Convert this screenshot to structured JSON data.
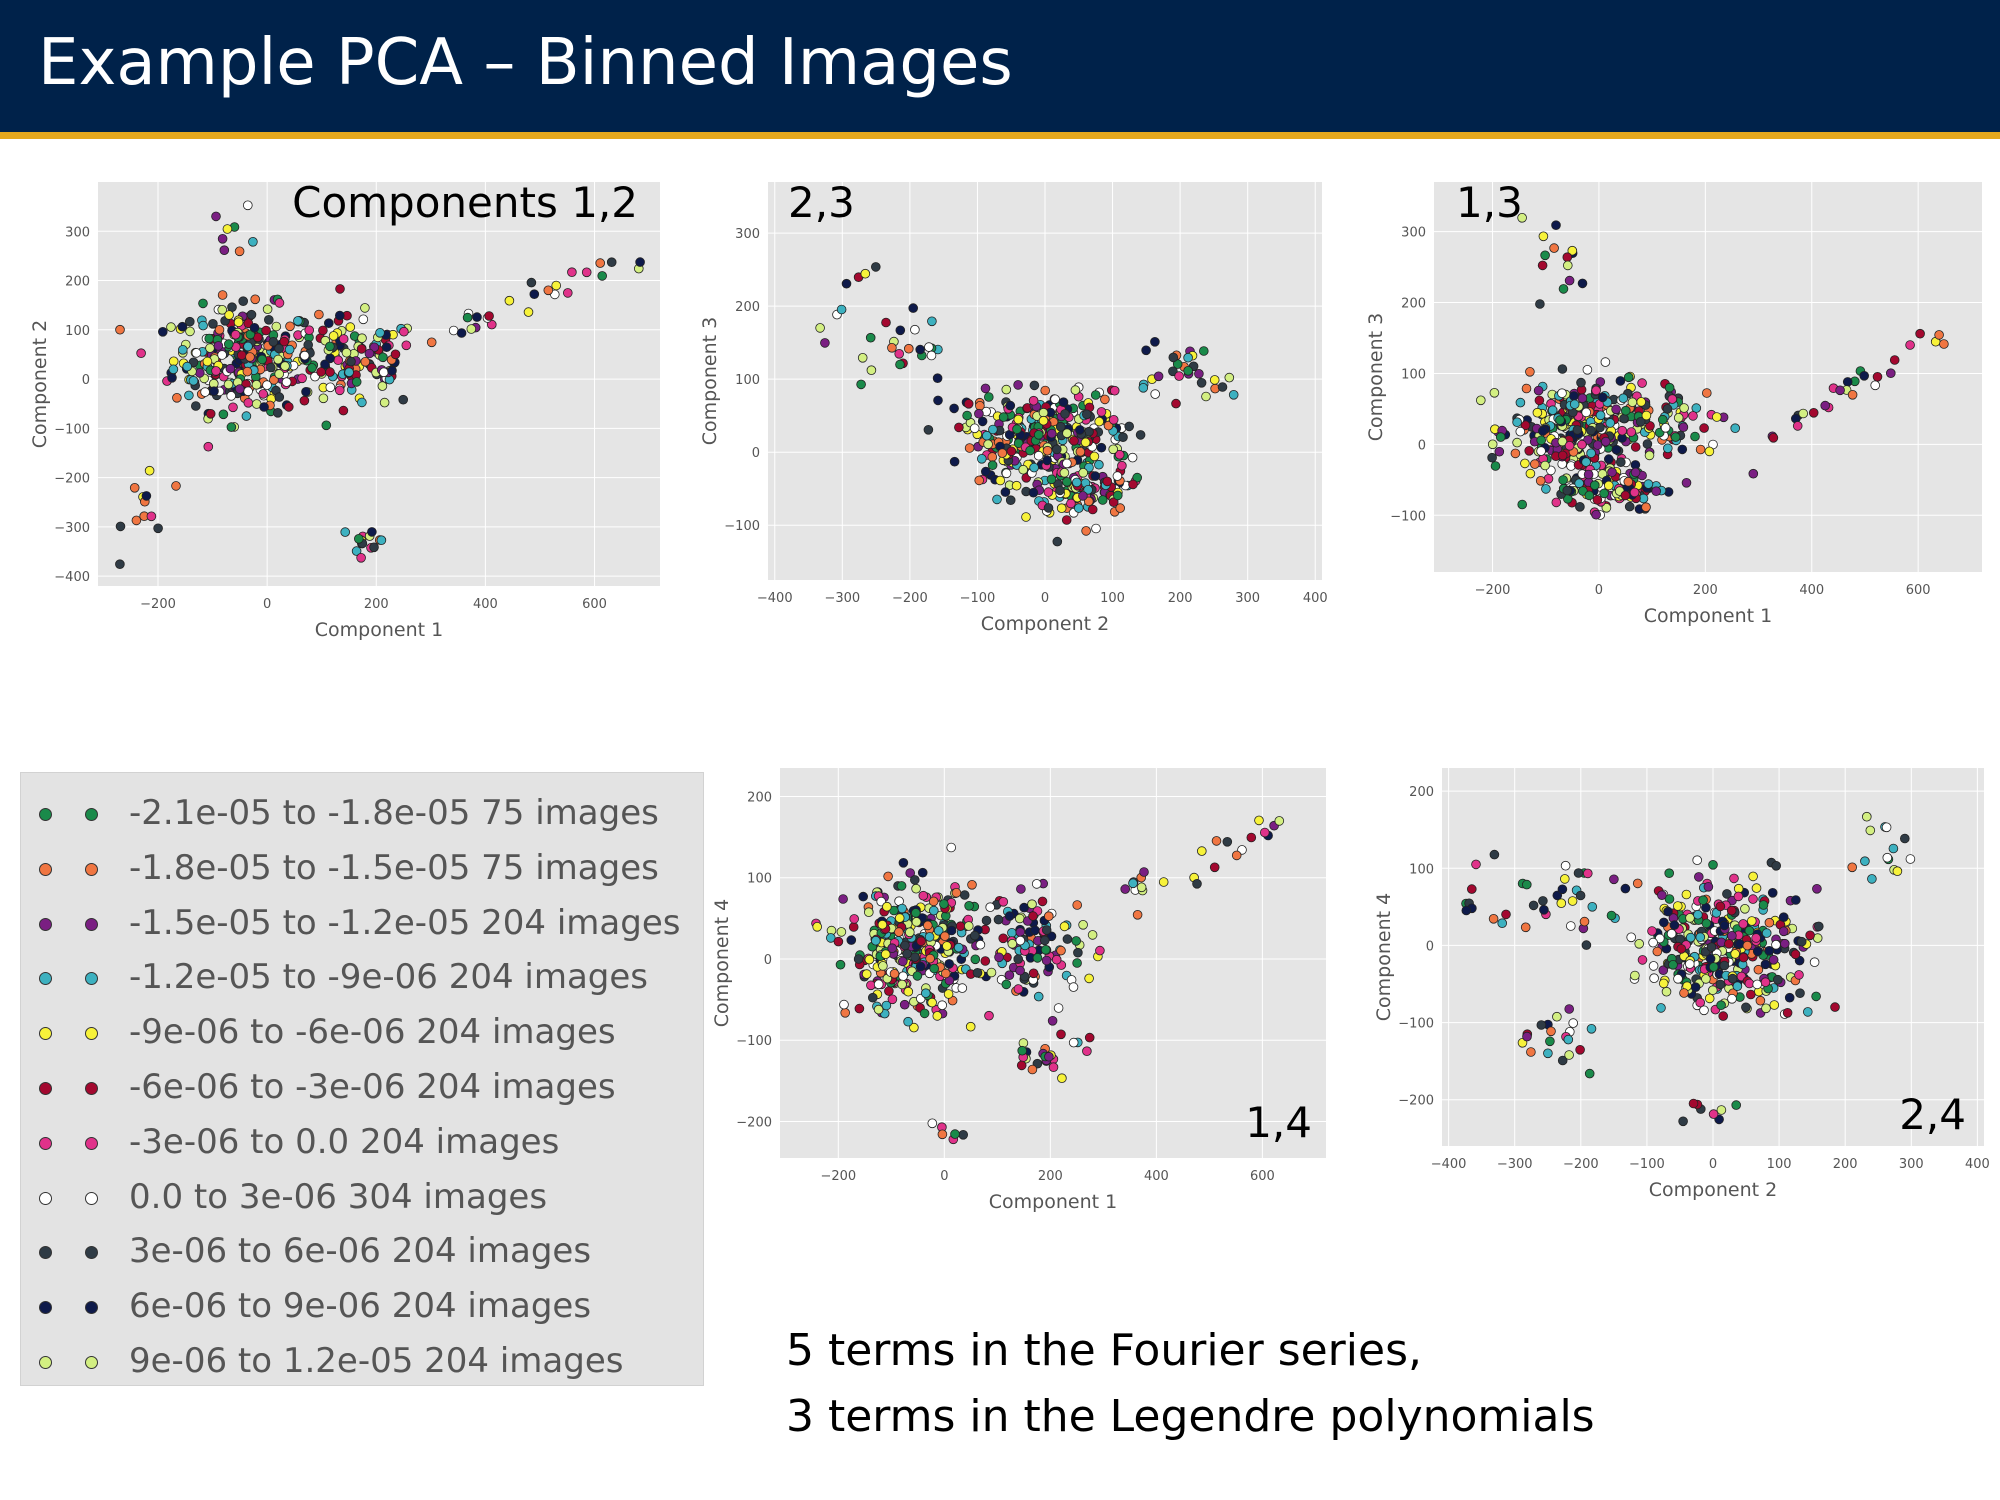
{
  "title": "Example PCA – Binned Images",
  "legend": {
    "items": [
      {
        "label": "-2.1e-05 to -1.8e-05 75 images",
        "color": "#1a8a4a"
      },
      {
        "label": "-1.8e-05 to -1.5e-05 75 images",
        "color": "#f07642"
      },
      {
        "label": "-1.5e-05 to -1.2e-05 204 images",
        "color": "#7a1f82"
      },
      {
        "label": "-1.2e-05 to -9e-06 204 images",
        "color": "#3db1c0"
      },
      {
        "label": "-9e-06 to -6e-06 204 images",
        "color": "#f7f23a"
      },
      {
        "label": "-6e-06 to -3e-06 204 images",
        "color": "#a3082f"
      },
      {
        "label": "-3e-06 to 0.0 204 images",
        "color": "#e0328a"
      },
      {
        "label": "0.0 to 3e-06 304 images",
        "color": "#ffffff"
      },
      {
        "label": "3e-06 to 6e-06 204 images",
        "color": "#2f3b45"
      },
      {
        "label": "6e-06 to 9e-06 204 images",
        "color": "#0e1a4a"
      },
      {
        "label": "9e-06 to 1.2e-05 204 images",
        "color": "#d3ef82"
      }
    ]
  },
  "note": {
    "line1": "5 terms in the Fourier series,",
    "line2": "3 terms in the Legendre polynomials"
  },
  "chart_data": [
    {
      "id": "p12",
      "type": "scatter",
      "panel_label": "Components 1,2",
      "xlabel": "Component 1",
      "ylabel": "Component 2",
      "xlim": [
        -310,
        720
      ],
      "ylim": [
        -420,
        400
      ],
      "xticks": [
        -200,
        0,
        200,
        400,
        600
      ],
      "yticks": [
        -400,
        -300,
        -200,
        -100,
        0,
        100,
        200,
        300
      ],
      "grid": true,
      "clusters": [
        {
          "center": [
            -40,
            40
          ],
          "spread": [
            120,
            95
          ],
          "count": 320
        },
        {
          "center": [
            160,
            30
          ],
          "spread": [
            110,
            85
          ],
          "count": 120
        },
        {
          "center": [
            -220,
            -250
          ],
          "spread": [
            40,
            90
          ],
          "count": 12
        },
        {
          "center": [
            190,
            -330
          ],
          "spread": [
            30,
            35
          ],
          "count": 14
        },
        {
          "center": [
            -60,
            300
          ],
          "spread": [
            40,
            50
          ],
          "count": 8
        }
      ],
      "arm": {
        "from": [
          300,
          80
        ],
        "to": [
          660,
          250
        ],
        "count": 26,
        "spread": 40
      }
    },
    {
      "id": "p23",
      "type": "scatter",
      "panel_label": "2,3",
      "xlabel": "Component 2",
      "ylabel": "Component 3",
      "xlim": [
        -410,
        410
      ],
      "ylim": [
        -175,
        370
      ],
      "xticks": [
        -400,
        -300,
        -200,
        -100,
        0,
        100,
        200,
        300,
        400
      ],
      "yticks": [
        -100,
        0,
        100,
        200,
        300
      ],
      "grid": true,
      "clusters": [
        {
          "center": [
            0,
            20
          ],
          "spread": [
            110,
            55
          ],
          "count": 340
        },
        {
          "center": [
            50,
            -50
          ],
          "spread": [
            70,
            35
          ],
          "count": 110
        },
        {
          "center": [
            -200,
            140
          ],
          "spread": [
            60,
            40
          ],
          "count": 22
        },
        {
          "center": [
            200,
            110
          ],
          "spread": [
            60,
            45
          ],
          "count": 30
        }
      ],
      "arm": {
        "from": [
          -330,
          150
        ],
        "to": [
          -260,
          270
        ],
        "count": 8,
        "spread": 20
      }
    },
    {
      "id": "p13",
      "type": "scatter",
      "panel_label": "1,3",
      "xlabel": "Component 1",
      "ylabel": "Component 3",
      "xlim": [
        -310,
        720
      ],
      "ylim": [
        -180,
        370
      ],
      "xticks": [
        -200,
        0,
        200,
        400,
        600
      ],
      "yticks": [
        -100,
        0,
        100,
        200,
        300
      ],
      "grid": true,
      "clusters": [
        {
          "center": [
            -40,
            20
          ],
          "spread": [
            110,
            60
          ],
          "count": 340
        },
        {
          "center": [
            20,
            -60
          ],
          "spread": [
            90,
            30
          ],
          "count": 120
        },
        {
          "center": [
            150,
            30
          ],
          "spread": [
            90,
            60
          ],
          "count": 60
        },
        {
          "center": [
            -70,
            250
          ],
          "spread": [
            40,
            60
          ],
          "count": 14
        }
      ],
      "arm": {
        "from": [
          300,
          0
        ],
        "to": [
          670,
          170
        ],
        "count": 26,
        "spread": 25
      }
    },
    {
      "id": "p14",
      "type": "scatter",
      "panel_label": "1,4",
      "xlabel": "Component 1",
      "ylabel": "Component 4",
      "xlim": [
        -310,
        720
      ],
      "ylim": [
        -245,
        235
      ],
      "xticks": [
        -200,
        0,
        200,
        400,
        600
      ],
      "yticks": [
        -200,
        -100,
        0,
        100,
        200
      ],
      "grid": true,
      "clusters": [
        {
          "center": [
            -60,
            10
          ],
          "spread": [
            110,
            70
          ],
          "count": 360
        },
        {
          "center": [
            170,
            20
          ],
          "spread": [
            100,
            55
          ],
          "count": 120
        },
        {
          "center": [
            200,
            -110
          ],
          "spread": [
            70,
            35
          ],
          "count": 25
        },
        {
          "center": [
            0,
            -210
          ],
          "spread": [
            30,
            20
          ],
          "count": 6
        }
      ],
      "arm": {
        "from": [
          300,
          70
        ],
        "to": [
          670,
          175
        ],
        "count": 24,
        "spread": 25
      }
    },
    {
      "id": "p24",
      "type": "scatter",
      "panel_label": "2,4",
      "xlabel": "Component 2",
      "ylabel": "Component 4",
      "xlim": [
        -410,
        410
      ],
      "ylim": [
        -260,
        230
      ],
      "xticks": [
        -400,
        -300,
        -200,
        -100,
        0,
        100,
        200,
        300,
        400
      ],
      "yticks": [
        -200,
        -100,
        0,
        100,
        200
      ],
      "grid": true,
      "clusters": [
        {
          "center": [
            20,
            0
          ],
          "spread": [
            110,
            70
          ],
          "count": 380
        },
        {
          "center": [
            -230,
            60
          ],
          "spread": [
            70,
            50
          ],
          "count": 30
        },
        {
          "center": [
            -250,
            -120
          ],
          "spread": [
            60,
            40
          ],
          "count": 20
        },
        {
          "center": [
            260,
            120
          ],
          "spread": [
            50,
            45
          ],
          "count": 14
        },
        {
          "center": [
            0,
            -220
          ],
          "spread": [
            50,
            20
          ],
          "count": 8
        }
      ],
      "arm": {
        "from": [
          -380,
          40
        ],
        "to": [
          -310,
          160
        ],
        "count": 7,
        "spread": 15
      }
    }
  ]
}
